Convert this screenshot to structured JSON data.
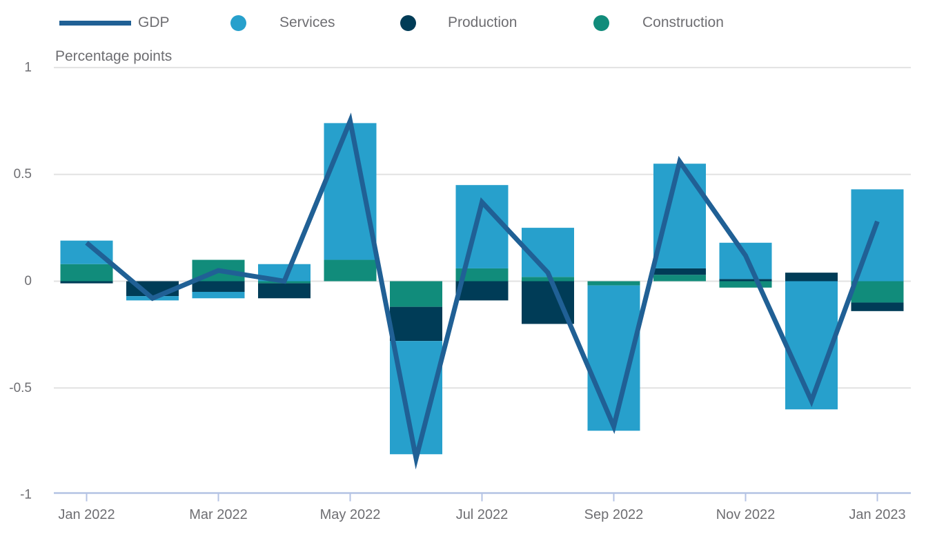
{
  "chart_data": {
    "type": "combo-line-stacked-bar",
    "unit_label": "Percentage points",
    "months": [
      "Jan 2022",
      "Feb 2022",
      "Mar 2022",
      "Apr 2022",
      "May 2022",
      "Jun 2022",
      "Jul 2022",
      "Aug 2022",
      "Sep 2022",
      "Oct 2022",
      "Nov 2022",
      "Dec 2022",
      "Jan 2023"
    ],
    "x_tick_labels": [
      "Jan 2022",
      "Mar 2022",
      "May 2022",
      "Jul 2022",
      "Sep 2022",
      "Nov 2022",
      "Jan 2023"
    ],
    "x_tick_month_indexes": [
      0,
      2,
      4,
      6,
      8,
      10,
      12
    ],
    "ylim": [
      -1,
      1
    ],
    "y_ticks": [
      {
        "value": 1,
        "label": "1"
      },
      {
        "value": 0.5,
        "label": "0.5"
      },
      {
        "value": 0,
        "label": "0"
      },
      {
        "value": -0.5,
        "label": "-0.5"
      },
      {
        "value": -1,
        "label": "-1"
      }
    ],
    "grid": "horizontal",
    "legend_position": "top",
    "stack_order_from_zero": [
      "Construction",
      "Production",
      "Services"
    ],
    "series": [
      {
        "name": "GDP",
        "type": "line",
        "color": "#206095",
        "values": [
          0.18,
          -0.08,
          0.05,
          0.0,
          0.75,
          -0.83,
          0.37,
          0.04,
          -0.68,
          0.56,
          0.12,
          -0.56,
          0.28
        ]
      },
      {
        "name": "Services",
        "type": "bar",
        "color": "#27A0CC",
        "values": [
          0.11,
          -0.02,
          -0.03,
          0.08,
          0.64,
          -0.53,
          0.39,
          0.23,
          -0.68,
          0.49,
          0.17,
          -0.6,
          0.43
        ]
      },
      {
        "name": "Production",
        "type": "bar",
        "color": "#003C57",
        "values": [
          -0.01,
          -0.07,
          -0.05,
          -0.07,
          0.0,
          -0.16,
          -0.09,
          -0.2,
          0.0,
          0.03,
          0.01,
          0.04,
          -0.04
        ]
      },
      {
        "name": "Construction",
        "type": "bar",
        "color": "#118C7B",
        "values": [
          0.08,
          0.0,
          0.1,
          -0.01,
          0.1,
          -0.12,
          0.06,
          0.02,
          -0.02,
          0.03,
          -0.03,
          0.0,
          -0.1
        ]
      }
    ],
    "style_colors": {
      "gridline": "#E2E2E2",
      "axis_line": "#B4C3E4",
      "tick_text": "#6E6E72",
      "legend_text": "#6E6E72"
    }
  }
}
